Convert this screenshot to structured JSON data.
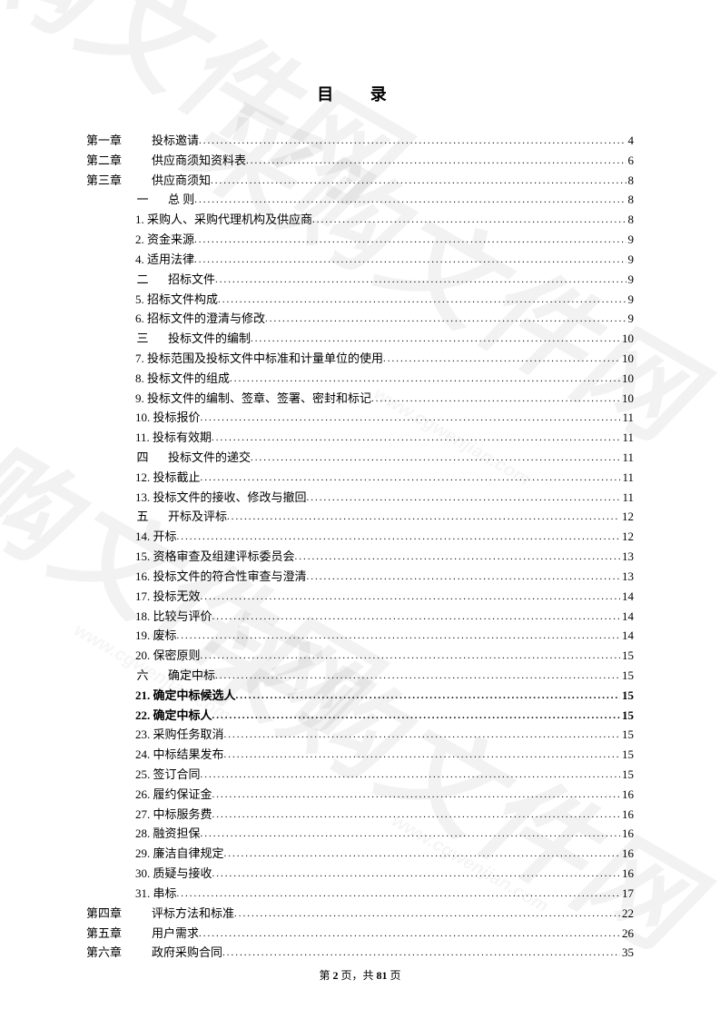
{
  "title": "目 录",
  "watermarks": {
    "big_text": "采购文件网",
    "url_text": "www.cgwenjian.com"
  },
  "footer": {
    "prefix": "第 ",
    "page": "2",
    "middle": " 页，共 ",
    "total": "81",
    "suffix": " 页"
  },
  "entries": [
    {
      "indent": 0,
      "prefix": "第一章",
      "label": "投标邀请",
      "page": "4",
      "bold": false,
      "chapter": true
    },
    {
      "indent": 0,
      "prefix": "第二章",
      "label": "供应商须知资料表",
      "page": "6",
      "bold": false,
      "chapter": true
    },
    {
      "indent": 0,
      "prefix": "第三章",
      "label": "供应商须知",
      "page": "8",
      "bold": false,
      "chapter": true
    },
    {
      "indent": 1,
      "prefix": "一",
      "label": "总 则",
      "page": "8",
      "bold": false,
      "section": true
    },
    {
      "indent": 2,
      "prefix": "",
      "label": "1. 采购人、采购代理机构及供应商",
      "page": "8",
      "bold": false
    },
    {
      "indent": 2,
      "prefix": "",
      "label": "2. 资金来源",
      "page": "9",
      "bold": false
    },
    {
      "indent": 2,
      "prefix": "",
      "label": "4. 适用法律",
      "page": "9",
      "bold": false
    },
    {
      "indent": 1,
      "prefix": "二",
      "label": "招标文件",
      "page": "9",
      "bold": false,
      "section": true
    },
    {
      "indent": 2,
      "prefix": "",
      "label": "5. 招标文件构成",
      "page": "9",
      "bold": false
    },
    {
      "indent": 2,
      "prefix": "",
      "label": "6. 招标文件的澄清与修改",
      "page": "9",
      "bold": false
    },
    {
      "indent": 1,
      "prefix": "三",
      "label": "投标文件的编制",
      "page": "10",
      "bold": false,
      "section": true
    },
    {
      "indent": 2,
      "prefix": "",
      "label": "7. 投标范围及投标文件中标准和计量单位的使用",
      "page": "10",
      "bold": false
    },
    {
      "indent": 2,
      "prefix": "",
      "label": "8. 投标文件的组成",
      "page": "10",
      "bold": false
    },
    {
      "indent": 2,
      "prefix": "",
      "label": "9. 投标文件的编制、签章、签署、密封和标记",
      "page": "10",
      "bold": false
    },
    {
      "indent": 2,
      "prefix": "",
      "label": "10. 投标报价",
      "page": "11",
      "bold": false
    },
    {
      "indent": 2,
      "prefix": "",
      "label": "11. 投标有效期",
      "page": "11",
      "bold": false
    },
    {
      "indent": 1,
      "prefix": "四",
      "label": "投标文件的递交",
      "page": "11",
      "bold": false,
      "section": true
    },
    {
      "indent": 2,
      "prefix": "",
      "label": "12. 投标截止",
      "page": "11",
      "bold": false
    },
    {
      "indent": 2,
      "prefix": "",
      "label": "13. 投标文件的接收、修改与撤回",
      "page": "11",
      "bold": false
    },
    {
      "indent": 1,
      "prefix": "五",
      "label": "开标及评标",
      "page": "12",
      "bold": false,
      "section": true
    },
    {
      "indent": 2,
      "prefix": "",
      "label": "14. 开标",
      "page": "12",
      "bold": false
    },
    {
      "indent": 2,
      "prefix": "",
      "label": "15. 资格审查及组建评标委员会",
      "page": "13",
      "bold": false
    },
    {
      "indent": 2,
      "prefix": "",
      "label": "16. 投标文件的符合性审查与澄清",
      "page": "13",
      "bold": false
    },
    {
      "indent": 2,
      "prefix": "",
      "label": "17. 投标无效",
      "page": "14",
      "bold": false
    },
    {
      "indent": 2,
      "prefix": "",
      "label": "18. 比较与评价",
      "page": "14",
      "bold": false
    },
    {
      "indent": 2,
      "prefix": "",
      "label": "19. 废标",
      "page": "14",
      "bold": false
    },
    {
      "indent": 2,
      "prefix": "",
      "label": "20. 保密原则",
      "page": "15",
      "bold": false
    },
    {
      "indent": 1,
      "prefix": "六",
      "label": "确定中标",
      "page": "15",
      "bold": false,
      "section": true
    },
    {
      "indent": 2,
      "prefix": "",
      "label": "21. 确定中标候选人",
      "page": "15",
      "bold": true
    },
    {
      "indent": 2,
      "prefix": "",
      "label": "22. 确定中标人",
      "page": "15",
      "bold": true
    },
    {
      "indent": 2,
      "prefix": "",
      "label": "23. 采购任务取消",
      "page": "15",
      "bold": false
    },
    {
      "indent": 2,
      "prefix": "",
      "label": "24. 中标结果发布",
      "page": "15",
      "bold": false
    },
    {
      "indent": 2,
      "prefix": "",
      "label": "25. 签订合同",
      "page": "15",
      "bold": false
    },
    {
      "indent": 2,
      "prefix": "",
      "label": "26. 履约保证金",
      "page": "16",
      "bold": false
    },
    {
      "indent": 2,
      "prefix": "",
      "label": "27. 中标服务费",
      "page": "16",
      "bold": false
    },
    {
      "indent": 2,
      "prefix": "",
      "label": "28. 融资担保",
      "page": "16",
      "bold": false
    },
    {
      "indent": 2,
      "prefix": "",
      "label": "29. 廉洁自律规定",
      "page": "16",
      "bold": false
    },
    {
      "indent": 2,
      "prefix": "",
      "label": "30. 质疑与接收",
      "page": "16",
      "bold": false
    },
    {
      "indent": 2,
      "prefix": "",
      "label": "31. 串标",
      "page": "17",
      "bold": false
    },
    {
      "indent": 0,
      "prefix": "第四章",
      "label": "评标方法和标准",
      "page": "22",
      "bold": false,
      "chapter": true
    },
    {
      "indent": 0,
      "prefix": "第五章",
      "label": "用户需求",
      "page": "26",
      "bold": false,
      "chapter": true
    },
    {
      "indent": 0,
      "prefix": "第六章",
      "label": "政府采购合同",
      "page": "35",
      "bold": false,
      "chapter": true
    }
  ]
}
